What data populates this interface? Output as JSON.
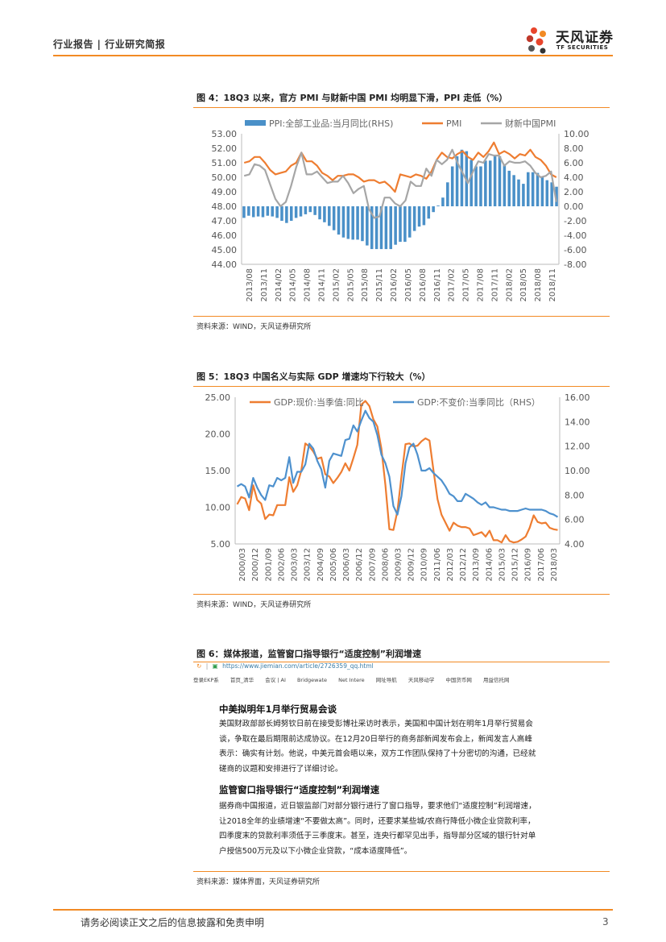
{
  "header": {
    "category": "行业报告 | 行业研究简报",
    "brand_name": "天风证券",
    "brand_sub": "TF SECURITIES",
    "accent": "#f28a24"
  },
  "figure4": {
    "title": "图 4：18Q3 以来，官方 PMI 与财新中国 PMI 均明显下滑，PPI 走低（%）",
    "source": "资料来源：WIND，天风证券研究所"
  },
  "figure5": {
    "title": "图 5：18Q3 中国名义与实际 GDP 增速均下行较大（%）",
    "source": "资料来源：WIND，天风证券研究所"
  },
  "figure6": {
    "title": "图 6：媒体报道，监管窗口指导银行“适度控制”利润增速",
    "source": "资料来源：媒体界面，天风证券研究所",
    "url": "https://www.jiemian.com/article/2726359_qq.html",
    "bookmarks": [
      "登录EKP系",
      "首页_清华",
      "会议 | AI",
      "Bridgewate",
      "Net Intere",
      "网址导航",
      "天风移动学",
      "中国货币网",
      "用益信托网"
    ],
    "article": {
      "heading1": "中美拟明年1月举行贸易会谈",
      "para1": "美国财政部部长姆努钦日前在接受彭博社采访时表示，美国和中国计划在明年1月举行贸易会谈，争取在最后期限前达成协议。在12月20日举行的商务部新闻发布会上，新闻发言人高峰表示：确实有计划。他说，中美元首会晤以来，双方工作团队保持了十分密切的沟通，已经就磋商的议题和安排进行了详细讨论。",
      "heading2": "监管窗口指导银行“适度控制”利润增速",
      "para2": "据券商中国报道，近日银监部门对部分银行进行了窗口指导，要求他们“适度控制”利润增速，让2018全年的业绩增速“不要做太高”。同时，还要求某些城/农商行降低小微企业贷款利率，四季度末的贷款利率须低于三季度末。甚至，连央行都罕见出手，指导部分区域的银行针对单户授信500万元及以下小微企业贷款，“成本适度降低”。"
    }
  },
  "footer": {
    "disclaimer": "请务必阅读正文之后的信息披露和免责申明",
    "page": "3"
  },
  "chart_data": [
    {
      "type": "line",
      "title": "",
      "series": [
        {
          "name": "PPI:全部工业品:当月同比(RHS)",
          "kind": "bar",
          "axis": "right",
          "color": "#4a90c8",
          "values": [
            -1.6,
            -1.3,
            -1.5,
            -1.4,
            -1.5,
            -1.3,
            -1.4,
            -1.6,
            -2.0,
            -2.3,
            -2.0,
            -1.6,
            -1.4,
            -1.1,
            -0.8,
            -1.2,
            -1.8,
            -2.2,
            -2.7,
            -3.3,
            -3.9,
            -4.3,
            -4.5,
            -4.6,
            -4.6,
            -4.8,
            -5.4,
            -5.9,
            -5.9,
            -5.9,
            -5.9,
            -5.9,
            -5.3,
            -4.9,
            -4.9,
            -4.3,
            -3.4,
            -2.8,
            -2.6,
            -1.7,
            -0.8,
            0.1,
            1.2,
            3.3,
            5.5,
            6.9,
            7.8,
            7.6,
            6.4,
            5.5,
            5.5,
            6.3,
            6.3,
            6.9,
            6.9,
            5.8,
            4.9,
            4.3,
            3.7,
            3.1,
            4.7,
            4.7,
            4.6,
            4.1,
            3.6,
            3.3,
            2.7
          ],
          "x_start": "2013/08"
        },
        {
          "name": "PMI",
          "kind": "line",
          "axis": "left",
          "color": "#ee7d31",
          "values": [
            51.0,
            51.1,
            51.4,
            51.4,
            51.0,
            50.5,
            50.2,
            50.3,
            50.4,
            50.8,
            51.0,
            51.7,
            51.1,
            51.1,
            50.8,
            50.3,
            50.1,
            49.8,
            50.1,
            50.1,
            50.2,
            50.2,
            50.0,
            49.7,
            49.8,
            49.8,
            49.6,
            49.7,
            49.4,
            49.0,
            50.2,
            50.1,
            50.0,
            50.2,
            50.1,
            49.9,
            50.4,
            51.2,
            51.7,
            51.4,
            51.3,
            51.6,
            51.8,
            51.4,
            51.2,
            51.7,
            51.4,
            51.8,
            52.4,
            51.6,
            51.8,
            51.6,
            51.3,
            51.6,
            51.5,
            51.9,
            51.4,
            51.2,
            50.8,
            50.2,
            50.0
          ],
          "x_start": "2013/08"
        },
        {
          "name": "财新中国PMI",
          "kind": "line",
          "axis": "left",
          "color": "#a6a6a6",
          "values": [
            50.1,
            50.2,
            50.9,
            50.8,
            50.5,
            49.5,
            48.5,
            48.0,
            48.3,
            49.4,
            50.7,
            51.7,
            50.2,
            50.2,
            50.4,
            50.0,
            49.6,
            49.7,
            49.7,
            50.1,
            49.6,
            48.9,
            49.2,
            49.4,
            47.8,
            47.2,
            47.3,
            48.6,
            48.6,
            48.2,
            48.0,
            48.4,
            49.7,
            49.4,
            49.4,
            50.6,
            50.1,
            51.2,
            50.9,
            51.2,
            51.9,
            51.0,
            50.3,
            49.6,
            50.4,
            51.1,
            51.0,
            51.6,
            51.5,
            51.5,
            50.8,
            51.1,
            51.0,
            51.0,
            51.1,
            50.8,
            50.3,
            50.0,
            50.1,
            50.4,
            48.3
          ],
          "x_start": "2013/08"
        }
      ],
      "x_ticks": [
        "2013/08",
        "2013/11",
        "2014/02",
        "2014/05",
        "2014/08",
        "2014/11",
        "2015/02",
        "2015/05",
        "2015/08",
        "2015/11",
        "2016/02",
        "2016/05",
        "2016/08",
        "2016/11",
        "2017/02",
        "2017/05",
        "2017/08",
        "2017/11",
        "2018/02",
        "2018/05",
        "2018/08",
        "2018/11"
      ],
      "y_left_ticks": [
        "53.00",
        "52.00",
        "51.00",
        "50.00",
        "49.00",
        "48.00",
        "47.00",
        "46.00",
        "45.00",
        "44.00"
      ],
      "y_right_ticks": [
        "10.00",
        "8.00",
        "6.00",
        "4.00",
        "2.00",
        "0.00",
        "-2.00",
        "-4.00",
        "-6.00",
        "-8.00"
      ],
      "ylim_left": [
        44,
        53
      ],
      "ylim_right": [
        -8,
        10
      ],
      "legend": "top"
    },
    {
      "type": "line",
      "title": "",
      "series": [
        {
          "name": "GDP:现价:当季值:同比",
          "kind": "line",
          "axis": "left",
          "color": "#ee7d31",
          "values": [
            10.4,
            11.4,
            11.2,
            9.6,
            13.0,
            11.0,
            10.5,
            8.4,
            9.0,
            8.9,
            10.3,
            10.3,
            10.3,
            14.1,
            12.1,
            13.0,
            15.0,
            18.7,
            18.3,
            17.6,
            16.6,
            16.8,
            14.5,
            14.2,
            13.3,
            14.0,
            14.8,
            16.0,
            15.0,
            16.7,
            18.5,
            24.0,
            24.5,
            23.8,
            22.0,
            21.0,
            18.0,
            13.0,
            7.0,
            6.9,
            9.5,
            14.2,
            18.6,
            18.7,
            18.3,
            18.4,
            19.0,
            19.4,
            19.1,
            15.0,
            11.1,
            9.0,
            7.9,
            6.8,
            7.9,
            7.5,
            7.3,
            7.3,
            7.1,
            6.2,
            6.4,
            6.6,
            6.0,
            6.8,
            5.5,
            5.5,
            5.2,
            6.2,
            5.4,
            5.2,
            5.3,
            5.6,
            6.0,
            7.2,
            8.9,
            8.0,
            7.8,
            7.9,
            7.2,
            7.0,
            6.9
          ],
          "x_start": "2000/03"
        },
        {
          "name": "GDP:不变价:当季同比（RHS）",
          "kind": "line",
          "axis": "right",
          "color": "#4e91ce",
          "values": [
            8.7,
            8.9,
            8.7,
            7.8,
            9.4,
            8.6,
            8.0,
            7.6,
            8.8,
            8.7,
            9.4,
            9.2,
            9.4,
            11.1,
            9.0,
            9.9,
            9.9,
            10.5,
            12.2,
            11.8,
            10.8,
            10.1,
            8.6,
            10.8,
            11.4,
            11.3,
            11.2,
            12.5,
            12.6,
            13.7,
            13.2,
            14.1,
            14.9,
            14.3,
            14.0,
            12.9,
            11.3,
            10.6,
            9.5,
            7.1,
            6.4,
            7.9,
            10.6,
            11.9,
            12.2,
            11.3,
            10.0,
            10.0,
            10.2,
            9.8,
            9.5,
            9.2,
            8.7,
            8.1,
            7.9,
            7.5,
            7.5,
            8.1,
            7.9,
            7.7,
            7.4,
            7.2,
            7.4,
            7.0,
            7.0,
            6.9,
            6.8,
            6.8,
            6.7,
            6.7,
            6.7,
            6.8,
            6.9,
            6.8,
            6.8,
            6.8,
            6.8,
            6.7,
            6.5,
            6.4,
            6.2
          ],
          "x_start": "2000/03"
        }
      ],
      "x_ticks": [
        "2000/03",
        "2000/12",
        "2001/09",
        "2002/06",
        "2003/03",
        "2003/12",
        "2004/09",
        "2005/06",
        "2006/03",
        "2006/12",
        "2007/09",
        "2008/06",
        "2009/03",
        "2009/12",
        "2010/09",
        "2011/06",
        "2012/03",
        "2012/12",
        "2013/09",
        "2014/06",
        "2015/03",
        "2015/12",
        "2016/09",
        "2017/06",
        "2018/03"
      ],
      "y_left_ticks": [
        "25.00",
        "20.00",
        "15.00",
        "10.00",
        "5.00"
      ],
      "y_right_ticks": [
        "16.00",
        "14.00",
        "12.00",
        "10.00",
        "8.00",
        "6.00",
        "4.00"
      ],
      "ylim_left": [
        5,
        25
      ],
      "ylim_right": [
        4,
        16
      ],
      "legend": "top"
    }
  ]
}
